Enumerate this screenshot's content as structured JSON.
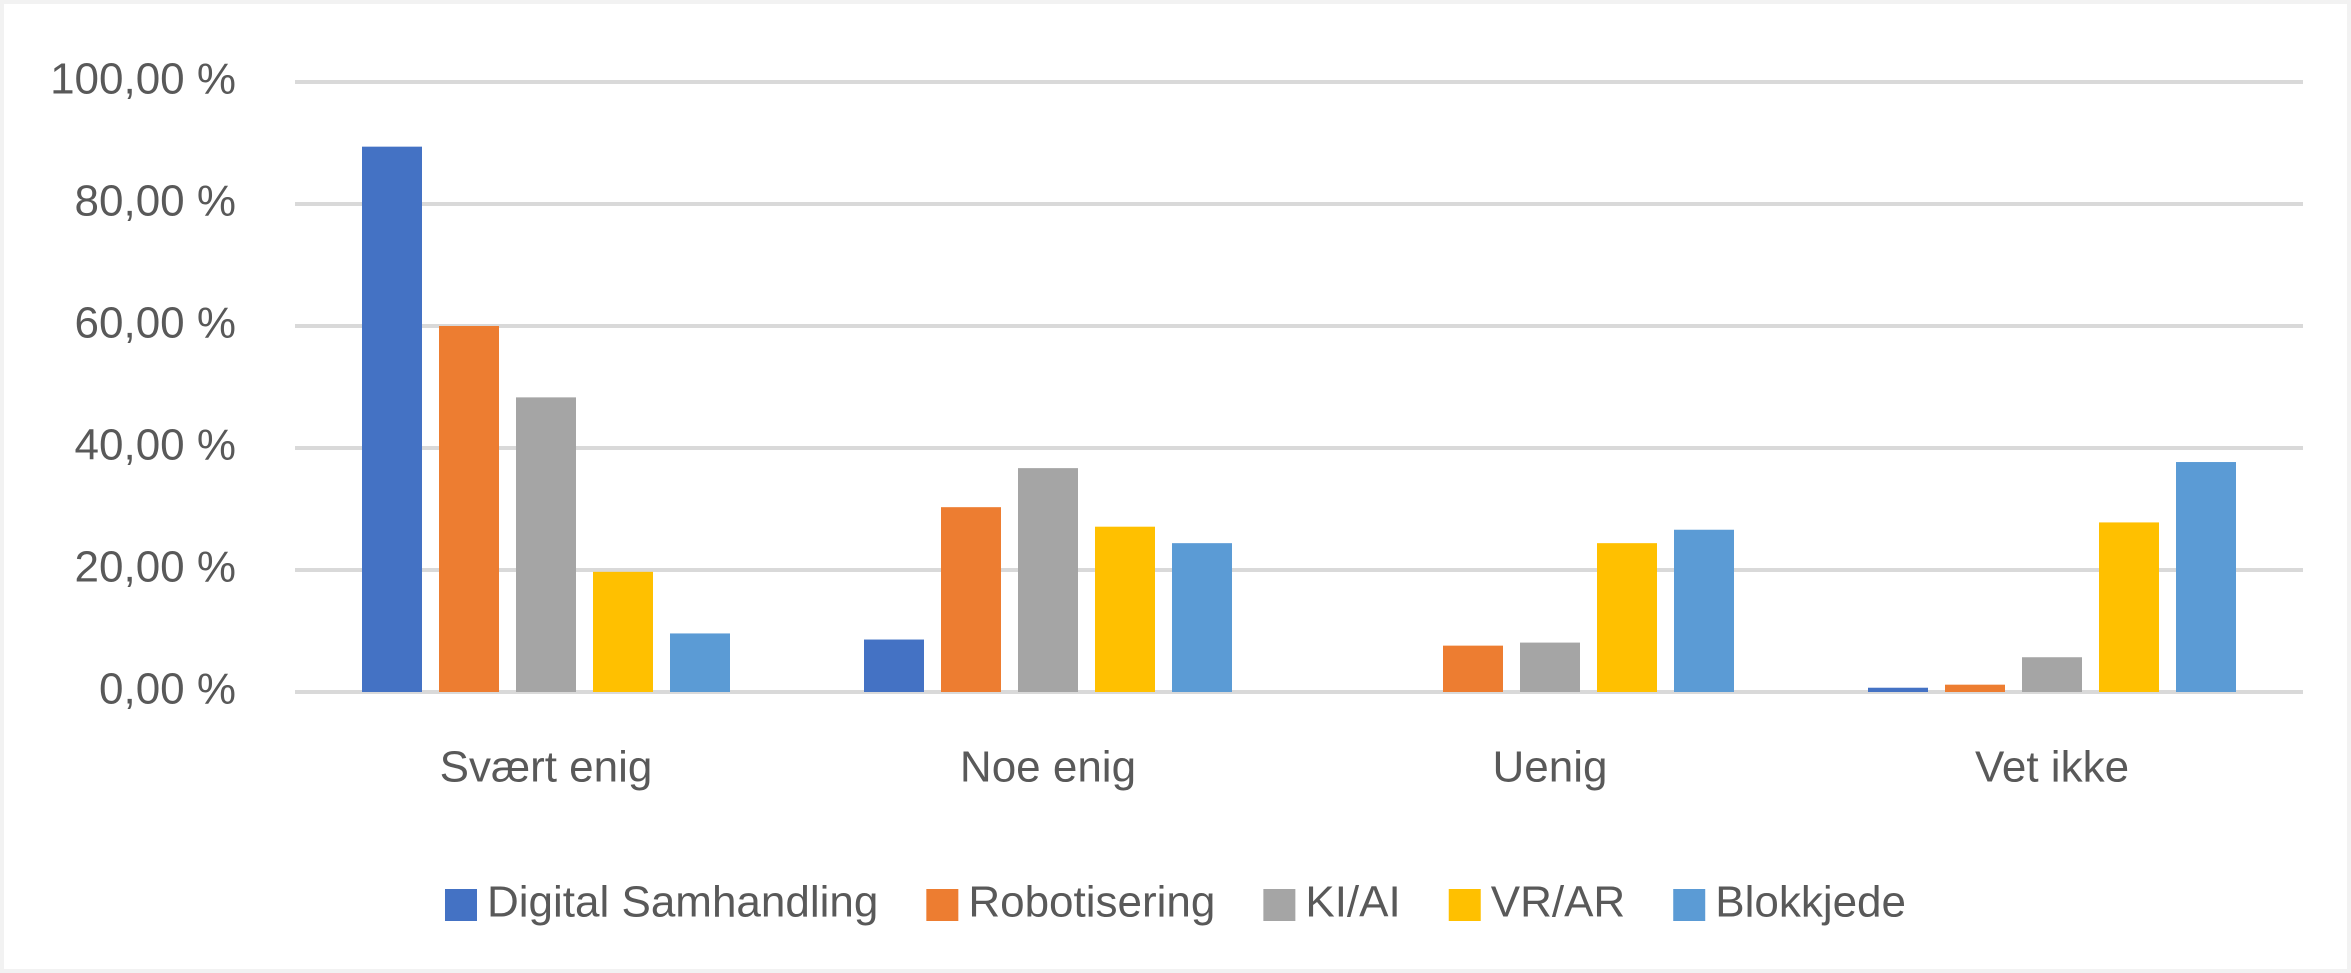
{
  "chart_data": {
    "type": "bar",
    "categories": [
      "Svært enig",
      "Noe enig",
      "Uenig",
      "Vet ikke"
    ],
    "series": [
      {
        "name": "Digital Samhandling",
        "color": "#4472c4",
        "values": [
          89.4,
          8.6,
          0,
          0.7
        ]
      },
      {
        "name": "Robotisering",
        "color": "#ed7d31",
        "values": [
          60,
          30.3,
          7.6,
          1.2
        ]
      },
      {
        "name": "KI/AI",
        "color": "#a5a5a5",
        "values": [
          48.3,
          36.7,
          8.1,
          5.7
        ]
      },
      {
        "name": "VR/AR",
        "color": "#ffc000",
        "values": [
          19.7,
          27.1,
          24.4,
          27.8
        ]
      },
      {
        "name": "Blokkjede",
        "color": "#5b9bd5",
        "values": [
          9.6,
          24.4,
          26.6,
          37.7
        ]
      }
    ],
    "ylim": [
      0,
      100
    ],
    "yticks": [
      {
        "value": 0,
        "label": "0,00 %"
      },
      {
        "value": 20,
        "label": "20,00 %"
      },
      {
        "value": 40,
        "label": "40,00 %"
      },
      {
        "value": 60,
        "label": "60,00 %"
      },
      {
        "value": 80,
        "label": "80,00 %"
      },
      {
        "value": 100,
        "label": "100,00 %"
      }
    ],
    "grid": true,
    "legend": "bottom"
  }
}
